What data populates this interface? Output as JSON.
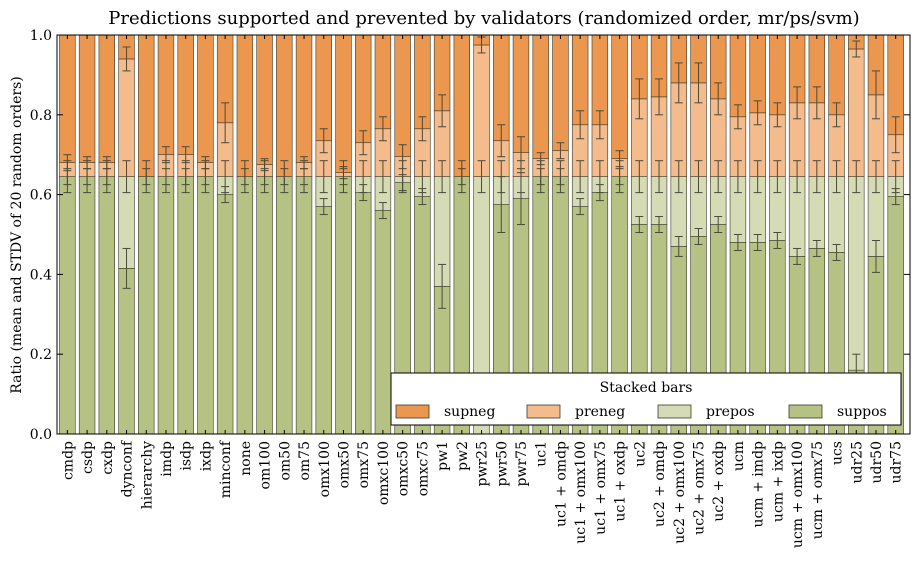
{
  "chart_data": {
    "type": "bar",
    "stacked": true,
    "title": "Predictions supported and prevented by validators (randomized order, mr/ps/svm)",
    "xlabel": "",
    "ylabel": "Ratio (mean and STDV of 20 random orders)",
    "ylim": [
      0,
      1
    ],
    "yticks": [
      "0.0",
      "0.2",
      "0.4",
      "0.6",
      "0.8",
      "1.0"
    ],
    "legend": {
      "title": "Stacked bars",
      "placement": "lower-right"
    },
    "categories": [
      "cmdp",
      "csdp",
      "cxdp",
      "dynconf",
      "hierarchy",
      "imdp",
      "isdp",
      "ixdp",
      "minconf",
      "none",
      "om100",
      "om50",
      "om75",
      "omx100",
      "omx50",
      "omx75",
      "omxc100",
      "omxc50",
      "omxc75",
      "pw1",
      "pw2",
      "pwr25",
      "pwr50",
      "pwr75",
      "uc1",
      "uc1 + omdp",
      "uc1 + omx100",
      "uc1 + omx75",
      "uc1 + oxdp",
      "uc2",
      "uc2 + omdp",
      "uc2 + omx100",
      "uc2 + omx75",
      "uc2 + oxdp",
      "ucm",
      "ucm + imdp",
      "ucm + ixdp",
      "ucm + omx100",
      "ucm + omx75",
      "ucs",
      "udr25",
      "udr50",
      "udr75"
    ],
    "series": [
      {
        "name": "suppos",
        "color": "#b5c283",
        "values": [
          0.645,
          0.645,
          0.645,
          0.415,
          0.645,
          0.645,
          0.645,
          0.645,
          0.6,
          0.645,
          0.645,
          0.645,
          0.645,
          0.57,
          0.645,
          0.605,
          0.56,
          0.63,
          0.595,
          0.37,
          0.645,
          0.0,
          0.575,
          0.59,
          0.645,
          0.645,
          0.57,
          0.605,
          0.645,
          0.525,
          0.525,
          0.47,
          0.495,
          0.525,
          0.48,
          0.48,
          0.485,
          0.445,
          0.465,
          0.455,
          0.16,
          0.445,
          0.595
        ],
        "errors": [
          0.02,
          0.02,
          0.02,
          0.05,
          0.02,
          0.02,
          0.02,
          0.02,
          0.02,
          0.02,
          0.02,
          0.02,
          0.02,
          0.02,
          0.02,
          0.02,
          0.02,
          0.02,
          0.02,
          0.055,
          0.02,
          0.0,
          0.07,
          0.065,
          0.02,
          0.02,
          0.02,
          0.02,
          0.02,
          0.02,
          0.02,
          0.025,
          0.02,
          0.02,
          0.02,
          0.02,
          0.02,
          0.02,
          0.02,
          0.02,
          0.04,
          0.04,
          0.02
        ]
      },
      {
        "name": "prepos",
        "color": "#d5dcb5",
        "values": [
          0.0,
          0.0,
          0.0,
          0.23,
          0.0,
          0.0,
          0.0,
          0.0,
          0.045,
          0.0,
          0.0,
          0.0,
          0.0,
          0.075,
          0.0,
          0.04,
          0.085,
          0.015,
          0.05,
          0.275,
          0.0,
          0.645,
          0.07,
          0.055,
          0.0,
          0.0,
          0.075,
          0.04,
          0.0,
          0.12,
          0.12,
          0.175,
          0.15,
          0.12,
          0.165,
          0.165,
          0.16,
          0.2,
          0.18,
          0.19,
          0.485,
          0.2,
          0.05
        ],
        "errors": [
          0.04,
          0.04,
          0.04,
          0.04,
          0.04,
          0.04,
          0.04,
          0.04,
          0.04,
          0.04,
          0.04,
          0.04,
          0.04,
          0.04,
          0.04,
          0.04,
          0.04,
          0.04,
          0.04,
          0.04,
          0.04,
          0.04,
          0.04,
          0.04,
          0.04,
          0.04,
          0.04,
          0.04,
          0.04,
          0.04,
          0.04,
          0.04,
          0.04,
          0.04,
          0.04,
          0.04,
          0.04,
          0.04,
          0.04,
          0.04,
          0.04,
          0.04,
          0.04
        ]
      },
      {
        "name": "preneg",
        "color": "#f4bb8c",
        "values": [
          0.035,
          0.035,
          0.035,
          0.295,
          0.0,
          0.055,
          0.055,
          0.035,
          0.135,
          0.0,
          0.03,
          0.0,
          0.035,
          0.09,
          0.01,
          0.085,
          0.12,
          0.05,
          0.12,
          0.165,
          0.0,
          0.33,
          0.09,
          0.06,
          0.045,
          0.065,
          0.13,
          0.13,
          0.045,
          0.195,
          0.2,
          0.235,
          0.235,
          0.195,
          0.15,
          0.16,
          0.155,
          0.185,
          0.185,
          0.155,
          0.32,
          0.205,
          0.105
        ],
        "errors": [
          0.02,
          0.015,
          0.015,
          0.03,
          0.0,
          0.02,
          0.02,
          0.015,
          0.05,
          0.0,
          0.015,
          0.0,
          0.015,
          0.03,
          0.015,
          0.03,
          0.03,
          0.03,
          0.03,
          0.04,
          0.0,
          0.02,
          0.04,
          0.04,
          0.015,
          0.02,
          0.035,
          0.035,
          0.02,
          0.05,
          0.045,
          0.05,
          0.05,
          0.04,
          0.03,
          0.03,
          0.03,
          0.04,
          0.04,
          0.03,
          0.02,
          0.06,
          0.045
        ]
      },
      {
        "name": "supneg",
        "color": "#ec9750",
        "values": [
          0.32,
          0.32,
          0.32,
          0.06,
          0.355,
          0.3,
          0.3,
          0.32,
          0.22,
          0.355,
          0.325,
          0.355,
          0.32,
          0.265,
          0.345,
          0.27,
          0.235,
          0.305,
          0.235,
          0.19,
          0.355,
          0.025,
          0.265,
          0.295,
          0.31,
          0.29,
          0.225,
          0.225,
          0.31,
          0.16,
          0.155,
          0.12,
          0.12,
          0.16,
          0.205,
          0.195,
          0.2,
          0.17,
          0.17,
          0.2,
          0.035,
          0.15,
          0.25
        ]
      }
    ]
  }
}
